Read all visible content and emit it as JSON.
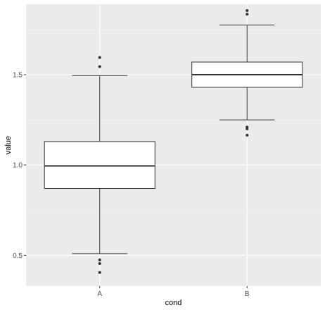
{
  "chart_data": {
    "type": "boxplot",
    "title": "",
    "xlabel": "cond",
    "ylabel": "value",
    "categories": [
      "A",
      "B"
    ],
    "ylim": [
      0.33,
      1.89
    ],
    "yticks": [
      0.5,
      1.0,
      1.5
    ],
    "ytick_labels": [
      "0.5",
      "1.0",
      "1.5"
    ],
    "grid": true,
    "legend": "none",
    "boxes": [
      {
        "category": "A",
        "whisker_low": 0.51,
        "q1": 0.87,
        "median": 0.995,
        "q3": 1.13,
        "whisker_high": 1.495,
        "outliers": [
          1.595,
          1.545,
          0.475,
          0.455,
          0.405
        ]
      },
      {
        "category": "B",
        "whisker_low": 1.25,
        "q1": 1.43,
        "median": 1.5,
        "q3": 1.57,
        "whisker_high": 1.775,
        "outliers": [
          1.855,
          1.835,
          1.21,
          1.2,
          1.165
        ]
      }
    ],
    "colors": {
      "panel": "#ebebeb",
      "grid_major": "#ffffff",
      "grid_minor": "#f5f5f5",
      "box_fill": "#ffffff",
      "box_line": "#333333",
      "outlier": "#333333"
    }
  }
}
